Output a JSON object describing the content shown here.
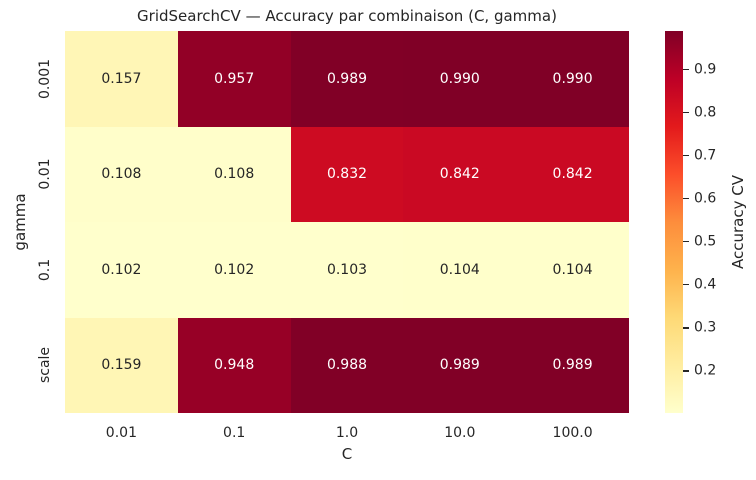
{
  "chart_data": {
    "type": "heatmap",
    "title": "GridSearchCV — Accuracy par combinaison (C, gamma)",
    "xlabel": "C",
    "ylabel": "gamma",
    "x_categories": [
      "0.01",
      "0.1",
      "1.0",
      "10.0",
      "100.0"
    ],
    "y_categories": [
      "0.001",
      "0.01",
      "0.1",
      "scale"
    ],
    "values": [
      [
        0.157,
        0.957,
        0.989,
        0.99,
        0.99
      ],
      [
        0.108,
        0.108,
        0.832,
        0.842,
        0.842
      ],
      [
        0.102,
        0.102,
        0.103,
        0.104,
        0.104
      ],
      [
        0.159,
        0.948,
        0.988,
        0.989,
        0.989
      ]
    ],
    "annotation_decimals": 3,
    "vmin": 0.102,
    "vmax": 0.99,
    "colormap": "YlOrRd",
    "colormap_stops": [
      "#ffffcc",
      "#ffeda0",
      "#fed976",
      "#feb24c",
      "#fd8d3c",
      "#fc4e2a",
      "#e31a1c",
      "#bd0026",
      "#800026"
    ],
    "colorbar": {
      "label": "Accuracy CV",
      "ticks": [
        0.2,
        0.3,
        0.4,
        0.5,
        0.6,
        0.7,
        0.8,
        0.9
      ],
      "tick_decimals": 1
    },
    "annotation_text_colors": {
      "on_light": "#262626",
      "on_dark": "#ffffff"
    },
    "text_color": "#262626",
    "background": "#ffffff",
    "grid": false,
    "legend_position": "right-colorbar"
  }
}
